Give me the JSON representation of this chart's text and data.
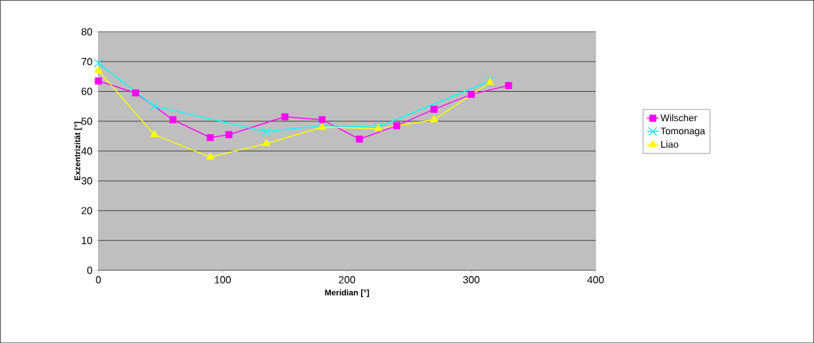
{
  "chart_data": {
    "type": "line",
    "xlabel": "Meridian [°]",
    "ylabel": "Exzentrizität [°]",
    "xlim": [
      0,
      400
    ],
    "xticks": [
      0,
      100,
      200,
      300,
      400
    ],
    "ylim": [
      0,
      80
    ],
    "yticks": [
      0,
      10,
      20,
      30,
      40,
      50,
      60,
      70,
      80
    ],
    "grid": "y",
    "legend": "right",
    "line_style": "solid",
    "series": [
      {
        "name": "Wilscher",
        "color": "#ff00ff",
        "marker": "square",
        "x": [
          0,
          30,
          60,
          90,
          105,
          150,
          180,
          210,
          240,
          270,
          300,
          330
        ],
        "values": [
          63.5,
          59.5,
          50.5,
          44.5,
          45.5,
          51.5,
          50.5,
          44,
          48.5,
          54,
          59,
          62
        ]
      },
      {
        "name": "Tomonaga",
        "color": "#00ffff",
        "marker": "cross",
        "x": [
          0,
          45,
          135,
          180,
          225,
          315
        ],
        "values": [
          69.5,
          55,
          46.5,
          48.5,
          48,
          63.5
        ]
      },
      {
        "name": "Liao",
        "color": "#ffff00",
        "marker": "triangle",
        "x": [
          0,
          45,
          90,
          135,
          180,
          225,
          270,
          315
        ],
        "values": [
          67,
          45.5,
          38,
          42.5,
          48,
          47.5,
          50.5,
          63
        ]
      }
    ]
  }
}
